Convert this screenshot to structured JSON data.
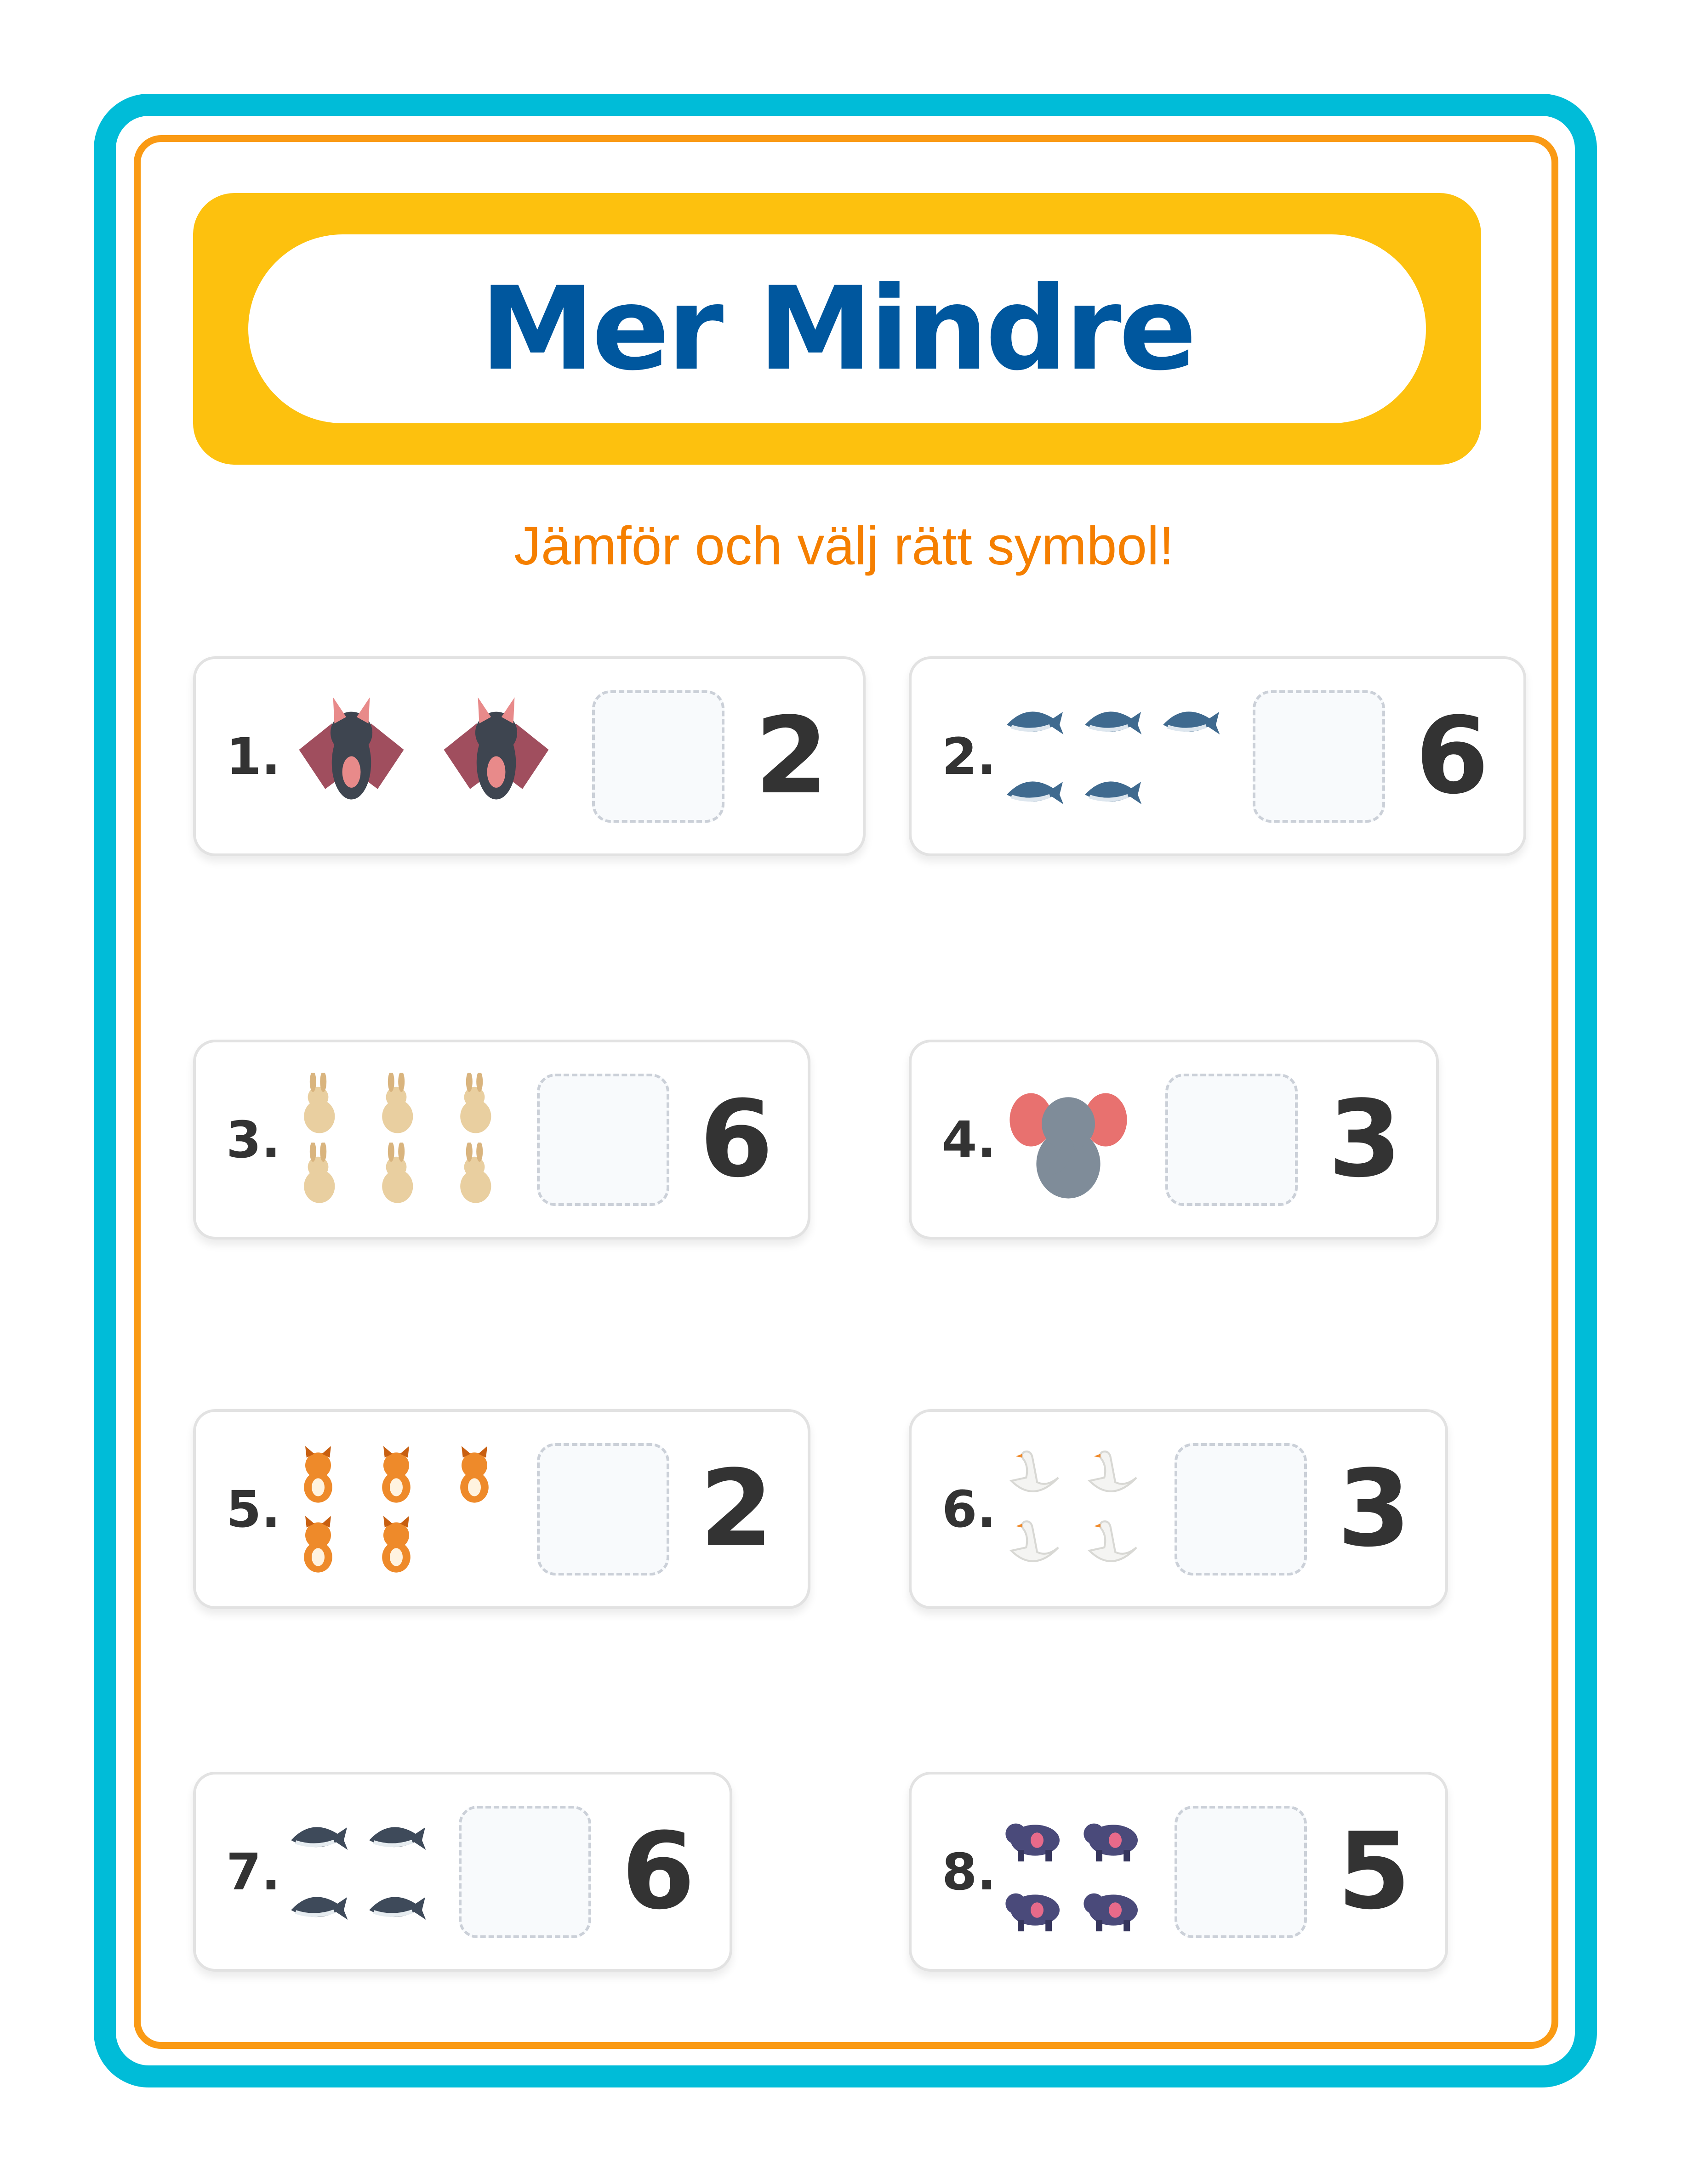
{
  "title": "Mer Mindre",
  "subtitle": "Jämför och välj rätt symbol!",
  "colors": {
    "frame": "#00BCD8",
    "inner_frame": "#FA9A14",
    "header": "#FDC10E",
    "title": "#00579E",
    "subtitle": "#F57F00"
  },
  "items": [
    {
      "label": "1.",
      "animal": "bat",
      "count": 2,
      "value": "2"
    },
    {
      "label": "2.",
      "animal": "dolphin",
      "count": 5,
      "value": "6"
    },
    {
      "label": "3.",
      "animal": "rabbit",
      "count": 6,
      "value": "6"
    },
    {
      "label": "4.",
      "animal": "elephant",
      "count": 1,
      "value": "3"
    },
    {
      "label": "5.",
      "animal": "tiger-cat",
      "count": 5,
      "value": "2"
    },
    {
      "label": "6.",
      "animal": "swan",
      "count": 4,
      "value": "3"
    },
    {
      "label": "7.",
      "animal": "whale",
      "count": 4,
      "value": "6"
    },
    {
      "label": "8.",
      "animal": "hippo",
      "count": 4,
      "value": "5"
    }
  ]
}
